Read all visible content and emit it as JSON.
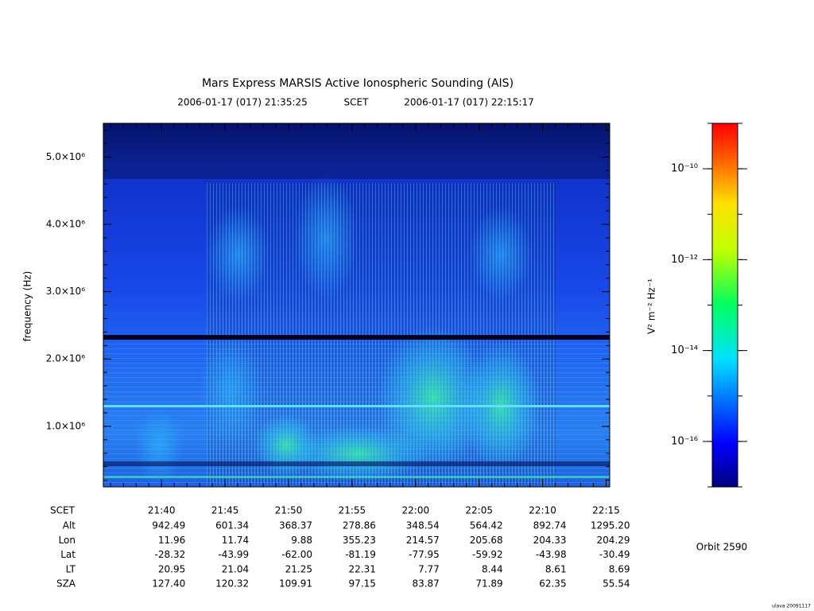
{
  "chart_data": {
    "type": "spectrogram",
    "title": "Mars Express MARSIS Active Ionospheric Sounding (AIS)",
    "start_time": "2006-01-17 (017) 21:35:25",
    "time_system": "SCET",
    "end_time": "2006-01-17 (017) 22:15:17",
    "y_label": "frequency (Hz)",
    "ylim": [
      100000,
      5500000
    ],
    "yticks": [
      {
        "value": 1000000,
        "label": "1.0×10⁶"
      },
      {
        "value": 2000000,
        "label": "2.0×10⁶"
      },
      {
        "value": 3000000,
        "label": "3.0×10⁶"
      },
      {
        "value": 4000000,
        "label": "4.0×10⁶"
      },
      {
        "value": 5000000,
        "label": "5.0×10⁶"
      }
    ],
    "xlim": [
      "21:35:25",
      "22:15:17"
    ],
    "xticks": [
      "21:40",
      "21:45",
      "21:50",
      "21:55",
      "22:00",
      "22:05",
      "22:10",
      "22:15"
    ],
    "x_row_label": "SCET",
    "ephemeris": [
      {
        "label": "Alt",
        "values": [
          "942.49",
          "601.34",
          "368.37",
          "278.86",
          "348.54",
          "564.42",
          "892.74",
          "1295.20"
        ]
      },
      {
        "label": "Lon",
        "values": [
          "11.96",
          "11.74",
          "9.88",
          "355.23",
          "214.57",
          "205.68",
          "204.33",
          "204.29"
        ]
      },
      {
        "label": "Lat",
        "values": [
          "-28.32",
          "-43.99",
          "-62.00",
          "-81.19",
          "-77.95",
          "-59.92",
          "-43.98",
          "-30.49"
        ]
      },
      {
        "label": "LT",
        "values": [
          "20.95",
          "21.04",
          "21.25",
          "22.31",
          "7.77",
          "8.44",
          "8.61",
          "8.69"
        ]
      },
      {
        "label": "SZA",
        "values": [
          "127.40",
          "120.32",
          "109.91",
          "97.15",
          "83.87",
          "71.89",
          "62.35",
          "55.54"
        ]
      }
    ],
    "colorbar": {
      "label": "V² m⁻² Hz⁻¹",
      "log_scale": true,
      "clim": [
        1e-17,
        1e-09
      ],
      "ticks": [
        {
          "value": 1e-16,
          "label": "10⁻¹⁶"
        },
        {
          "value": 1e-14,
          "label": "10⁻¹⁴"
        },
        {
          "value": 1e-12,
          "label": "10⁻¹²"
        },
        {
          "value": 1e-10,
          "label": "10⁻¹⁰"
        }
      ]
    },
    "orbit_label": "Orbit 2590",
    "footer": "ulava 20091117"
  }
}
